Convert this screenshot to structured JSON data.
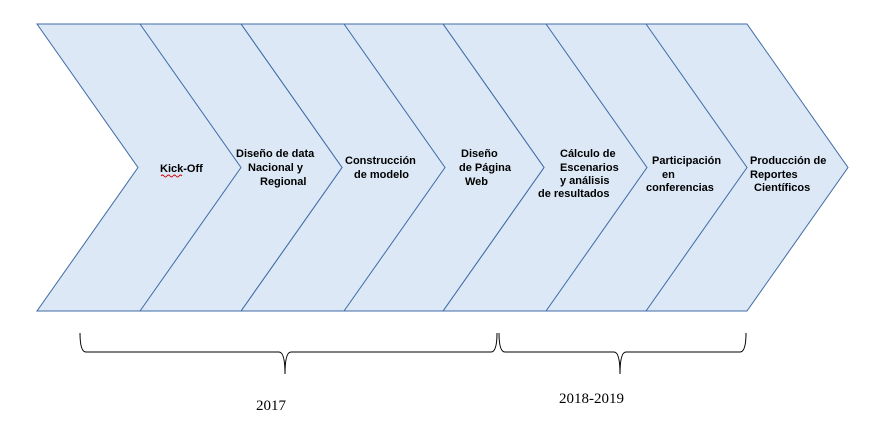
{
  "colors": {
    "chevron_fill": "#dce8f6",
    "chevron_stroke": "#3f6ba5",
    "bracket": "#000000",
    "spellcheck_underline": "#d00000"
  },
  "steps": [
    {
      "lines": [
        "Kick-Off"
      ],
      "spellcheck_flag": true
    },
    {
      "lines": [
        "Diseño de data",
        "Nacional y",
        "Regional"
      ]
    },
    {
      "lines": [
        "Construcción",
        "de modelo"
      ]
    },
    {
      "lines": [
        "Diseño",
        "de Página",
        "Web"
      ]
    },
    {
      "lines": [
        "Cálculo de",
        "Escenarios",
        "y análisis",
        "de resultados"
      ]
    },
    {
      "lines": [
        "Participación",
        "en",
        "conferencias"
      ]
    },
    {
      "lines": [
        "Producción de",
        "Reportes",
        "Científicos"
      ]
    }
  ],
  "periods": [
    {
      "label": "2017"
    },
    {
      "label": "2018-2019"
    }
  ]
}
